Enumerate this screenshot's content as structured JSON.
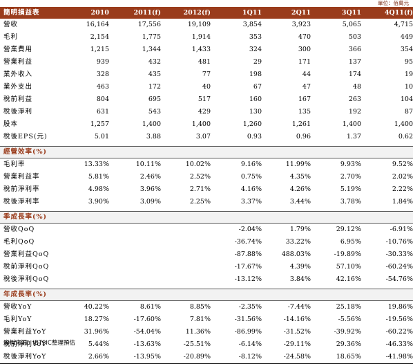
{
  "unit_label": "單位：佰萬元",
  "header": {
    "title": "簡明損益表",
    "columns": [
      "2010",
      "2011(f)",
      "2012(f)",
      "1Q11",
      "2Q11",
      "3Q11",
      "4Q11(f)"
    ]
  },
  "income": [
    {
      "label": "營收",
      "values": [
        "16,164",
        "17,556",
        "19,109",
        "3,854",
        "3,923",
        "5,065",
        "4,715"
      ]
    },
    {
      "label": "毛利",
      "values": [
        "2,154",
        "1,775",
        "1,914",
        "353",
        "470",
        "503",
        "449"
      ]
    },
    {
      "label": "營業費用",
      "values": [
        "1,215",
        "1,344",
        "1,433",
        "324",
        "300",
        "366",
        "354"
      ]
    },
    {
      "label": "營業利益",
      "values": [
        "939",
        "432",
        "481",
        "29",
        "171",
        "137",
        "95"
      ]
    },
    {
      "label": "業外收入",
      "values": [
        "328",
        "435",
        "77",
        "198",
        "44",
        "174",
        "19"
      ]
    },
    {
      "label": "業外支出",
      "values": [
        "463",
        "172",
        "40",
        "67",
        "47",
        "48",
        "10"
      ]
    },
    {
      "label": "稅前利益",
      "values": [
        "804",
        "695",
        "517",
        "160",
        "167",
        "263",
        "104"
      ]
    },
    {
      "label": "稅後淨利",
      "values": [
        "631",
        "543",
        "429",
        "130",
        "135",
        "192",
        "87"
      ]
    },
    {
      "label": "股本",
      "values": [
        "1,257",
        "1,400",
        "1,400",
        "1,260",
        "1,261",
        "1,400",
        "1,400"
      ]
    },
    {
      "label": "稅後EPS(元)",
      "values": [
        "5.01",
        "3.88",
        "3.07",
        "0.93",
        "0.96",
        "1.37",
        "0.62"
      ]
    }
  ],
  "margin_section": {
    "title": "經營效率(%)",
    "rows": [
      {
        "label": "毛利率",
        "values": [
          "13.33%",
          "10.11%",
          "10.02%",
          "9.16%",
          "11.99%",
          "9.93%",
          "9.52%"
        ]
      },
      {
        "label": "營業利益率",
        "values": [
          "5.81%",
          "2.46%",
          "2.52%",
          "0.75%",
          "4.35%",
          "2.70%",
          "2.02%"
        ]
      },
      {
        "label": "稅前淨利率",
        "values": [
          "4.98%",
          "3.96%",
          "2.71%",
          "4.16%",
          "4.26%",
          "5.19%",
          "2.22%"
        ]
      },
      {
        "label": "稅後淨利率",
        "values": [
          "3.90%",
          "3.09%",
          "2.25%",
          "3.37%",
          "3.44%",
          "3.78%",
          "1.84%"
        ]
      }
    ]
  },
  "qoq_section": {
    "title": "季成長率(%)",
    "rows": [
      {
        "label": "營收QoQ",
        "values": [
          "",
          "",
          "",
          "-2.04%",
          "1.79%",
          "29.12%",
          "-6.91%"
        ]
      },
      {
        "label": "毛利QoQ",
        "values": [
          "",
          "",
          "",
          "-36.74%",
          "33.22%",
          "6.95%",
          "-10.76%"
        ]
      },
      {
        "label": "營業利益QoQ",
        "values": [
          "",
          "",
          "",
          "-87.88%",
          "488.03%",
          "-19.89%",
          "-30.33%"
        ]
      },
      {
        "label": "稅前淨利QoQ",
        "values": [
          "",
          "",
          "",
          "-17.67%",
          "4.39%",
          "57.10%",
          "-60.24%"
        ]
      },
      {
        "label": "稅後淨利QoQ",
        "values": [
          "",
          "",
          "",
          "-13.12%",
          "3.84%",
          "42.16%",
          "-54.76%"
        ]
      }
    ]
  },
  "yoy_section": {
    "title": "年成長率(%)",
    "rows": [
      {
        "label": "營收YoY",
        "values": [
          "40.22%",
          "8.61%",
          "8.85%",
          "-2.35%",
          "-7.44%",
          "25.18%",
          "19.86%"
        ]
      },
      {
        "label": "毛利YoY",
        "values": [
          "18.27%",
          "-17.60%",
          "7.81%",
          "-31.56%",
          "-14.16%",
          "-5.56%",
          "-19.56%"
        ]
      },
      {
        "label": "營業利益YoY",
        "values": [
          "31.96%",
          "-54.04%",
          "11.36%",
          "-86.99%",
          "-31.52%",
          "-39.92%",
          "-60.22%"
        ]
      },
      {
        "label": "稅前淨利YoY",
        "values": [
          "5.44%",
          "-13.63%",
          "-25.51%",
          "-6.14%",
          "-29.11%",
          "29.36%",
          "-46.33%"
        ]
      },
      {
        "label": "稅後淨利YoY",
        "values": [
          "2.66%",
          "-13.95%",
          "-20.89%",
          "-8.12%",
          "-24.58%",
          "18.65%",
          "-41.98%"
        ]
      }
    ]
  },
  "source": "資料來源：IBTSIC整理預估"
}
